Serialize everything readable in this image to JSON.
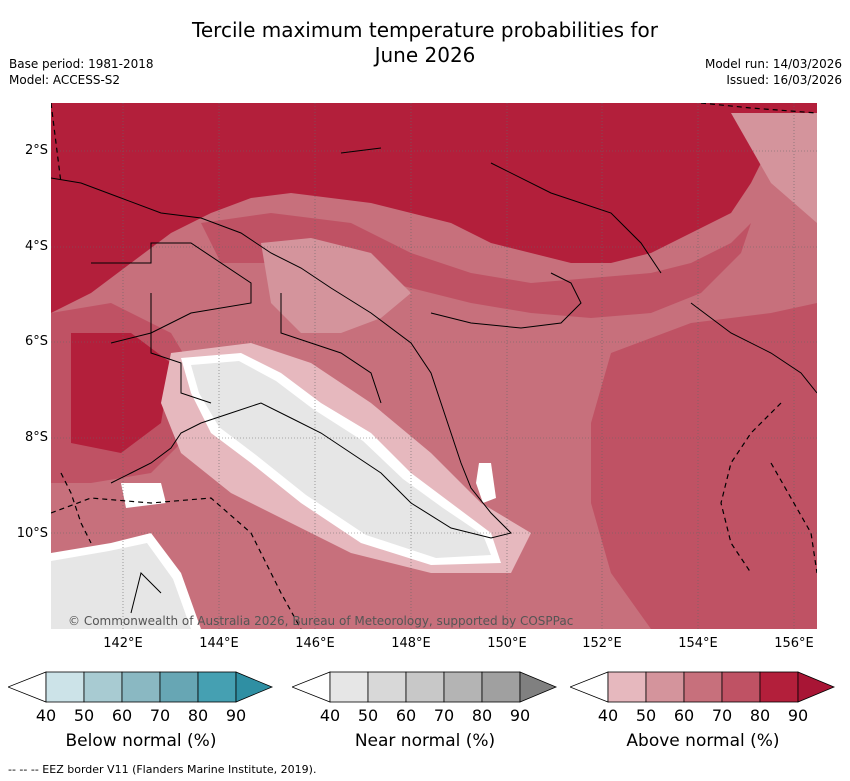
{
  "title_line1": "Tercile maximum temperature probabilities for",
  "title_line2": "June 2026",
  "meta_left": {
    "line1": "Base period: 1981-2018",
    "line2": "Model: ACCESS-S2"
  },
  "meta_right": {
    "line1": "Model run: 14/03/2026",
    "line2": "Issued: 16/03/2026"
  },
  "copyright": "© Commonwealth of Australia 2026, Bureau of Meteorology, supported by COSPPac",
  "lat_labels": [
    "2°S",
    "4°S",
    "6°S",
    "8°S",
    "10°S"
  ],
  "lon_labels": [
    "142°E",
    "144°E",
    "146°E",
    "148°E",
    "150°E",
    "152°E",
    "154°E",
    "156°E"
  ],
  "colorbars": [
    {
      "name": "below",
      "title": "Below normal (%)",
      "ticks": [
        "40",
        "50",
        "60",
        "70",
        "80",
        "90"
      ],
      "colors": [
        "#ffffff",
        "#cce3e8",
        "#a8cbd2",
        "#8ab8c2",
        "#67a6b4",
        "#45a0b2",
        "#2f8fa3"
      ]
    },
    {
      "name": "near",
      "title": "Near normal (%)",
      "ticks": [
        "40",
        "50",
        "60",
        "70",
        "80",
        "90"
      ],
      "colors": [
        "#ffffff",
        "#e6e6e6",
        "#d8d8d8",
        "#c8c8c8",
        "#b4b4b4",
        "#a0a0a0",
        "#808080"
      ]
    },
    {
      "name": "above",
      "title": "Above normal (%)",
      "ticks": [
        "40",
        "50",
        "60",
        "70",
        "80",
        "90"
      ],
      "colors": [
        "#ffffff",
        "#e6b8be",
        "#d4949c",
        "#c7707c",
        "#bf5264",
        "#b31f3b",
        "#a81535"
      ]
    }
  ],
  "footnote": "--  --  -- EEZ border V11 (Flanders Marine Institute, 2019)."
}
